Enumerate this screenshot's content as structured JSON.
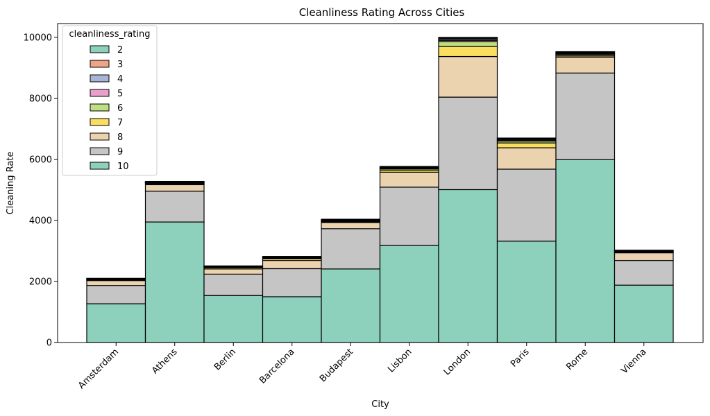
{
  "chart_data": {
    "type": "bar",
    "stacked": true,
    "title": "Cleanliness Rating Across Cities",
    "xlabel": "City",
    "ylabel": "Cleaning Rate",
    "ylim": [
      0,
      10450
    ],
    "yticks": [
      0,
      2000,
      4000,
      6000,
      8000,
      10000
    ],
    "grid": false,
    "legend_title": "cleanliness_rating",
    "legend_position": "top-left",
    "categories": [
      "Amsterdam",
      "Athens",
      "Berlin",
      "Barcelona",
      "Budapest",
      "Lisbon",
      "London",
      "Paris",
      "Rome",
      "Vienna"
    ],
    "series": [
      {
        "name": "10",
        "color": "#8dd1bd",
        "values": [
          1270,
          3950,
          1540,
          1500,
          2410,
          3180,
          5010,
          3320,
          5990,
          1880
        ]
      },
      {
        "name": "9",
        "color": "#c5c5c5",
        "values": [
          600,
          1010,
          700,
          920,
          1320,
          1910,
          3030,
          2360,
          2840,
          810
        ]
      },
      {
        "name": "8",
        "color": "#ebd3b0",
        "values": [
          160,
          210,
          170,
          270,
          200,
          490,
          1330,
          700,
          520,
          250
        ]
      },
      {
        "name": "7",
        "color": "#f9de60",
        "values": [
          20,
          30,
          40,
          50,
          30,
          70,
          330,
          160,
          40,
          30
        ]
      },
      {
        "name": "6",
        "color": "#c0df80",
        "values": [
          15,
          20,
          20,
          25,
          20,
          40,
          160,
          60,
          40,
          15
        ]
      },
      {
        "name": "5",
        "color": "#e8a0cb",
        "values": [
          10,
          15,
          10,
          15,
          15,
          20,
          40,
          30,
          30,
          10
        ]
      },
      {
        "name": "4",
        "color": "#a8b5d7",
        "values": [
          10,
          15,
          10,
          15,
          15,
          20,
          40,
          30,
          30,
          10
        ]
      },
      {
        "name": "3",
        "color": "#f0a486",
        "values": [
          10,
          15,
          10,
          15,
          15,
          20,
          30,
          20,
          20,
          10
        ]
      },
      {
        "name": "2",
        "color": "#8dd1bd",
        "values": [
          10,
          15,
          10,
          15,
          15,
          20,
          30,
          20,
          20,
          10
        ]
      }
    ],
    "legend_order": [
      "2",
      "3",
      "4",
      "5",
      "6",
      "7",
      "8",
      "9",
      "10"
    ]
  }
}
